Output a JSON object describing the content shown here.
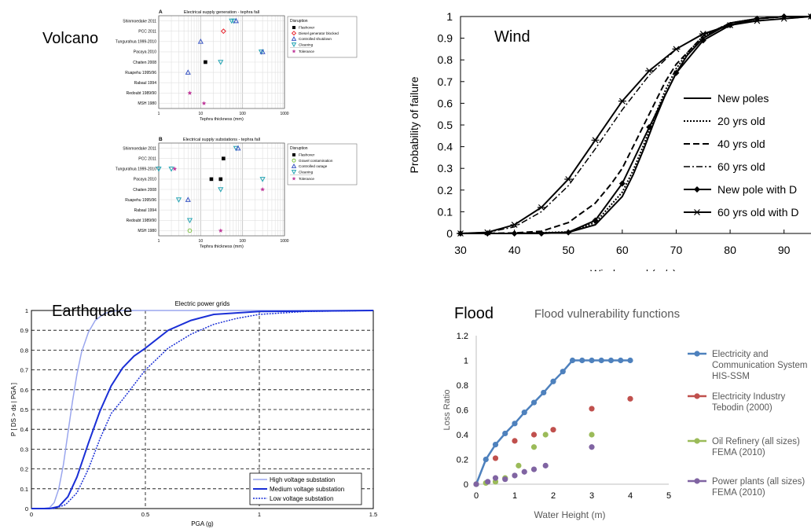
{
  "panels": {
    "volcano": {
      "label": "Volcano"
    },
    "wind": {
      "label": "Wind"
    },
    "earthquake": {
      "label": "Earthquake"
    },
    "flood": {
      "label": "Flood"
    }
  },
  "chart_data": [
    {
      "id": "volcano-a",
      "type": "scatter",
      "panel_letter": "A",
      "title": "Electrical supply generation - tephra fall",
      "xlabel": "Tephra thickness (mm)",
      "xscale": "log",
      "xlim": [
        1,
        1000
      ],
      "xticks": [
        "1",
        "10",
        "100",
        "1000"
      ],
      "categories": [
        "Shinmoedake 2011",
        "PCC 2011",
        "Tungurahua 1999-2010",
        "Pacaya 2010",
        "Chaiten 2008",
        "Ruapehu 1995/96",
        "Rabaul 1994",
        "Redoubt 1989/90",
        "MSH 1980"
      ],
      "legend_title": "Disruption",
      "legend": [
        {
          "name": "Flashover",
          "marker": "square",
          "color": "#000000"
        },
        {
          "name": "Diesel generator blocked",
          "marker": "diamond",
          "color": "#e8202a"
        },
        {
          "name": "Controlled shutdown",
          "marker": "triangle-up",
          "color": "#3b57c4"
        },
        {
          "name": "Cleaning",
          "marker": "triangle-down",
          "color": "#22a3b3"
        },
        {
          "name": "Tolerance",
          "marker": "star",
          "color": "#c0399a"
        }
      ],
      "points": [
        {
          "category": "Shinmoedake 2011",
          "x": 55,
          "marker": "triangle-down"
        },
        {
          "category": "Shinmoedake 2011",
          "x": 62,
          "marker": "triangle-down"
        },
        {
          "category": "Shinmoedake 2011",
          "x": 70,
          "marker": "triangle-up"
        },
        {
          "category": "PCC 2011",
          "x": 35,
          "marker": "diamond"
        },
        {
          "category": "Tungurahua 1999-2010",
          "x": 10,
          "marker": "triangle-up"
        },
        {
          "category": "Pacaya 2010",
          "x": 280,
          "marker": "triangle-down"
        },
        {
          "category": "Pacaya 2010",
          "x": 300,
          "marker": "triangle-up"
        },
        {
          "category": "Chaiten 2008",
          "x": 13,
          "marker": "square"
        },
        {
          "category": "Chaiten 2008",
          "x": 30,
          "marker": "triangle-down"
        },
        {
          "category": "Ruapehu 1995/96",
          "x": 5,
          "marker": "triangle-up"
        },
        {
          "category": "Redoubt 1989/90",
          "x": 5.5,
          "marker": "star"
        },
        {
          "category": "MSH 1980",
          "x": 12,
          "marker": "star"
        }
      ]
    },
    {
      "id": "volcano-b",
      "type": "scatter",
      "panel_letter": "B",
      "title": "Electrical supply substations - tephra fall",
      "xlabel": "Tephra thickness (mm)",
      "xscale": "log",
      "xlim": [
        1,
        1000
      ],
      "xticks": [
        "1",
        "10",
        "100",
        "1000"
      ],
      "categories": [
        "Shinmoedake 2011",
        "PCC 2011",
        "Tungurahua 1999-2010",
        "Pacaya 2010",
        "Chaiten 2008",
        "Ruapehu 1995/96",
        "Rabaul 1994",
        "Redoubt 1989/90",
        "MSH 1980"
      ],
      "legend_title": "Disruption",
      "legend": [
        {
          "name": "Flashover",
          "marker": "square",
          "color": "#000000"
        },
        {
          "name": "Gravel contamination",
          "marker": "circle",
          "color": "#7cc142"
        },
        {
          "name": "Controlled outage",
          "marker": "triangle-up",
          "color": "#3b57c4"
        },
        {
          "name": "Cleaning",
          "marker": "triangle-down",
          "color": "#22a3b3"
        },
        {
          "name": "Tolerance",
          "marker": "star",
          "color": "#c0399a"
        }
      ],
      "points": [
        {
          "category": "Shinmoedake 2011",
          "x": 70,
          "marker": "triangle-down"
        },
        {
          "category": "Shinmoedake 2011",
          "x": 78,
          "marker": "triangle-up"
        },
        {
          "category": "PCC 2011",
          "x": 35,
          "marker": "square"
        },
        {
          "category": "Tungurahua 1999-2010",
          "x": 1,
          "marker": "triangle-down"
        },
        {
          "category": "Tungurahua 1999-2010",
          "x": 2,
          "marker": "triangle-down"
        },
        {
          "category": "Tungurahua 1999-2010",
          "x": 2.4,
          "marker": "star"
        },
        {
          "category": "Pacaya 2010",
          "x": 18,
          "marker": "square"
        },
        {
          "category": "Pacaya 2010",
          "x": 30,
          "marker": "square"
        },
        {
          "category": "Pacaya 2010",
          "x": 300,
          "marker": "triangle-down"
        },
        {
          "category": "Chaiten 2008",
          "x": 30,
          "marker": "triangle-down"
        },
        {
          "category": "Chaiten 2008",
          "x": 300,
          "marker": "star"
        },
        {
          "category": "Ruapehu 1995/96",
          "x": 3,
          "marker": "triangle-down"
        },
        {
          "category": "Ruapehu 1995/96",
          "x": 5,
          "marker": "triangle-up"
        },
        {
          "category": "Redoubt 1989/90",
          "x": 5.5,
          "marker": "triangle-down"
        },
        {
          "category": "MSH 1980",
          "x": 5.5,
          "marker": "circle"
        },
        {
          "category": "MSH 1980",
          "x": 30,
          "marker": "star"
        }
      ]
    },
    {
      "id": "wind",
      "type": "line",
      "xlabel": "Wind speed (m/s)",
      "ylabel": "Probability of failure",
      "xlim": [
        30,
        95
      ],
      "ylim": [
        0,
        1
      ],
      "xticks": [
        30,
        40,
        50,
        60,
        70,
        80,
        90
      ],
      "yticks": [
        "0",
        "0.1",
        "0.2",
        "0.3",
        "0.4",
        "0.5",
        "0.6",
        "0.7",
        "0.8",
        "0.9",
        "1"
      ],
      "grid": false,
      "legend_position": "right",
      "series": [
        {
          "name": "New poles",
          "style": "solid",
          "marker": "none",
          "x": [
            30,
            40,
            50,
            55,
            60,
            62,
            64,
            66,
            68,
            70,
            72,
            75,
            80,
            85,
            90,
            95
          ],
          "y": [
            0,
            0,
            0.005,
            0.04,
            0.17,
            0.27,
            0.39,
            0.52,
            0.64,
            0.74,
            0.82,
            0.9,
            0.97,
            0.99,
            1,
            1
          ]
        },
        {
          "name": "20 yrs old",
          "style": "dotted",
          "marker": "none",
          "x": [
            30,
            40,
            50,
            55,
            60,
            62,
            64,
            66,
            68,
            70,
            72,
            75,
            80,
            85,
            90,
            95
          ],
          "y": [
            0,
            0,
            0.007,
            0.05,
            0.19,
            0.29,
            0.41,
            0.54,
            0.66,
            0.76,
            0.83,
            0.91,
            0.97,
            0.99,
            1,
            1
          ]
        },
        {
          "name": "40 yrs old",
          "style": "dashed",
          "marker": "none",
          "x": [
            30,
            40,
            45,
            50,
            55,
            58,
            60,
            62,
            64,
            66,
            68,
            70,
            75,
            80,
            85,
            90,
            95
          ],
          "y": [
            0,
            0.002,
            0.01,
            0.05,
            0.14,
            0.23,
            0.3,
            0.4,
            0.5,
            0.6,
            0.7,
            0.78,
            0.91,
            0.97,
            0.99,
            1,
            1
          ]
        },
        {
          "name": "60 yrs old",
          "style": "dashdot",
          "marker": "none",
          "x": [
            30,
            35,
            40,
            45,
            50,
            55,
            60,
            65,
            70,
            75,
            80,
            85,
            90,
            95
          ],
          "y": [
            0,
            0.005,
            0.03,
            0.1,
            0.22,
            0.39,
            0.57,
            0.73,
            0.85,
            0.92,
            0.96,
            0.98,
            0.99,
            1
          ]
        },
        {
          "name": "New pole with D",
          "style": "solid",
          "marker": "diamond",
          "x": [
            30,
            35,
            40,
            45,
            50,
            55,
            60,
            65,
            70,
            75,
            80,
            85,
            90,
            95
          ],
          "y": [
            0,
            0,
            0,
            0,
            0.005,
            0.06,
            0.23,
            0.49,
            0.74,
            0.89,
            0.96,
            0.99,
            1,
            1
          ]
        },
        {
          "name": "60 yrs old with D",
          "style": "solid",
          "marker": "star",
          "x": [
            30,
            35,
            40,
            45,
            50,
            55,
            60,
            65,
            70,
            75,
            80,
            85,
            90,
            95
          ],
          "y": [
            0,
            0.005,
            0.04,
            0.12,
            0.25,
            0.43,
            0.61,
            0.75,
            0.85,
            0.92,
            0.96,
            0.98,
            0.99,
            1
          ]
        }
      ]
    },
    {
      "id": "earthquake",
      "type": "line",
      "title": "Electric power grids",
      "xlabel": "PGA (g)",
      "ylabel": "P [ DS > ds | PGA ]",
      "xlim": [
        0,
        1.5
      ],
      "ylim": [
        0,
        1
      ],
      "xticks": [
        "0",
        "0.5",
        "1",
        "1.5"
      ],
      "yticks": [
        "0",
        "0.1",
        "0.2",
        "0.3",
        "0.4",
        "0.5",
        "0.6",
        "0.7",
        "0.8",
        "0.9",
        "1"
      ],
      "grid": true,
      "legend_position": "bottom-right",
      "series": [
        {
          "name": "High voltage substation",
          "color": "#9aa6ee",
          "style": "solid",
          "x": [
            0,
            0.05,
            0.08,
            0.1,
            0.12,
            0.14,
            0.16,
            0.18,
            0.2,
            0.22,
            0.25,
            0.28,
            0.32,
            0.36,
            0.4,
            1.5
          ],
          "y": [
            0,
            0,
            0.005,
            0.03,
            0.1,
            0.22,
            0.38,
            0.54,
            0.68,
            0.79,
            0.89,
            0.95,
            0.985,
            0.997,
            1,
            1
          ]
        },
        {
          "name": "Medium voltage substation",
          "color": "#1a2fd6",
          "style": "solid",
          "x": [
            0,
            0.08,
            0.12,
            0.16,
            0.2,
            0.25,
            0.3,
            0.35,
            0.4,
            0.45,
            0.5,
            0.6,
            0.7,
            0.8,
            1.0,
            1.5
          ],
          "y": [
            0,
            0,
            0.01,
            0.06,
            0.16,
            0.33,
            0.49,
            0.62,
            0.71,
            0.77,
            0.81,
            0.9,
            0.95,
            0.98,
            0.995,
            1
          ]
        },
        {
          "name": "Low voltage substation",
          "color": "#1a2fd6",
          "style": "dotted",
          "x": [
            0,
            0.1,
            0.15,
            0.2,
            0.25,
            0.3,
            0.35,
            0.4,
            0.5,
            0.6,
            0.7,
            0.8,
            0.9,
            1.0,
            1.2,
            1.5
          ],
          "y": [
            0,
            0,
            0.02,
            0.08,
            0.2,
            0.35,
            0.48,
            0.55,
            0.7,
            0.81,
            0.88,
            0.93,
            0.96,
            0.98,
            0.995,
            1
          ]
        }
      ]
    },
    {
      "id": "flood",
      "type": "line",
      "title": "Flood vulnerability functions",
      "xlabel": "Water Height (m)",
      "ylabel": "Loss Ratio",
      "xlim": [
        0,
        5
      ],
      "ylim": [
        0,
        1.2
      ],
      "xticks": [
        "0",
        "1",
        "2",
        "3",
        "4",
        "5"
      ],
      "yticks": [
        "0",
        "0.2",
        "0.4",
        "0.6",
        "0.8",
        "1",
        "1.2"
      ],
      "grid": false,
      "legend_position": "right",
      "series": [
        {
          "name_lines": [
            "Electricity and",
            "Communication System",
            "HIS-SSM"
          ],
          "color": "#4e81bd",
          "line": true,
          "x": [
            0,
            0.25,
            0.5,
            0.75,
            1,
            1.25,
            1.5,
            1.75,
            2,
            2.25,
            2.5,
            2.75,
            3,
            3.25,
            3.5,
            3.75,
            4
          ],
          "y": [
            0,
            0.2,
            0.32,
            0.41,
            0.49,
            0.58,
            0.66,
            0.74,
            0.83,
            0.91,
            1,
            1,
            1,
            1,
            1,
            1,
            1
          ]
        },
        {
          "name_lines": [
            "Electricity Industry",
            "Tebodin (2000)"
          ],
          "color": "#c0504d",
          "line": false,
          "x": [
            0.5,
            1,
            1.5,
            2,
            3,
            4
          ],
          "y": [
            0.21,
            0.35,
            0.4,
            0.44,
            0.61,
            0.69
          ]
        },
        {
          "name_lines": [
            "Oil Refinery (all sizes)",
            "FEMA (2010)"
          ],
          "color": "#9bbb59",
          "line": false,
          "x": [
            0,
            0.25,
            0.5,
            0.75,
            1.1,
            1.5,
            1.8,
            3
          ],
          "y": [
            0,
            0.01,
            0.02,
            0.05,
            0.15,
            0.3,
            0.4,
            0.4
          ]
        },
        {
          "name_lines": [
            "Power plants (all sizes)",
            "FEMA (2010)"
          ],
          "color": "#8064a2",
          "line": false,
          "x": [
            0,
            0.3,
            0.5,
            0.75,
            1,
            1.25,
            1.5,
            1.8,
            3
          ],
          "y": [
            0,
            0.02,
            0.05,
            0.04,
            0.07,
            0.1,
            0.12,
            0.15,
            0.3
          ]
        }
      ]
    }
  ]
}
